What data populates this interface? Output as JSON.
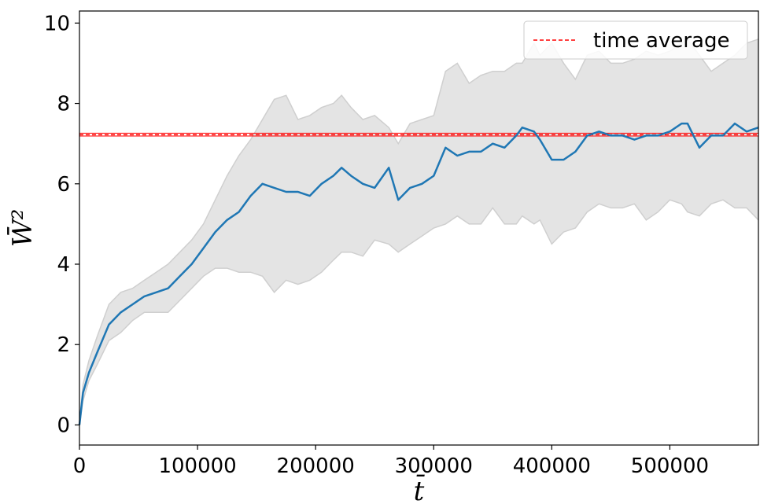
{
  "chart_data": {
    "type": "line",
    "title": "",
    "xlabel": "t̄",
    "ylabel": "W̄²",
    "xlim": [
      0,
      575000
    ],
    "ylim": [
      -0.5,
      10.3
    ],
    "x_ticks": [
      0,
      100000,
      200000,
      300000,
      400000,
      500000
    ],
    "x_tick_labels": [
      "0",
      "100000",
      "200000",
      "300000",
      "400000",
      "500000"
    ],
    "y_ticks": [
      0,
      2,
      4,
      6,
      8,
      10
    ],
    "y_tick_labels": [
      "0",
      "2",
      "4",
      "6",
      "8",
      "10"
    ],
    "grid": false,
    "legend": {
      "placement": "top-right",
      "entries": [
        "time average"
      ]
    },
    "series": [
      {
        "role": "mean",
        "color": "#1f77b4",
        "x": [
          0,
          3000,
          8000,
          15000,
          25000,
          35000,
          45000,
          55000,
          65000,
          75000,
          85000,
          95000,
          105000,
          115000,
          125000,
          135000,
          145000,
          155000,
          165000,
          175000,
          185000,
          195000,
          205000,
          215000,
          222000,
          230000,
          240000,
          250000,
          262000,
          270000,
          280000,
          290000,
          300000,
          310000,
          320000,
          330000,
          340000,
          350000,
          360000,
          370000,
          375000,
          385000,
          390000,
          400000,
          410000,
          420000,
          430000,
          440000,
          450000,
          460000,
          470000,
          480000,
          490000,
          500000,
          510000,
          515000,
          525000,
          535000,
          545000,
          555000,
          565000,
          575000
        ],
        "values": [
          0,
          0.8,
          1.3,
          1.8,
          2.5,
          2.8,
          3.0,
          3.2,
          3.3,
          3.4,
          3.7,
          4.0,
          4.4,
          4.8,
          5.1,
          5.3,
          5.7,
          6.0,
          5.9,
          5.8,
          5.8,
          5.7,
          6.0,
          6.2,
          6.4,
          6.2,
          6.0,
          5.9,
          6.4,
          5.6,
          5.9,
          6.0,
          6.2,
          6.9,
          6.7,
          6.8,
          6.8,
          7.0,
          6.9,
          7.2,
          7.4,
          7.3,
          7.1,
          6.6,
          6.6,
          6.8,
          7.2,
          7.3,
          7.2,
          7.2,
          7.1,
          7.2,
          7.2,
          7.3,
          7.5,
          7.5,
          6.9,
          7.2,
          7.2,
          7.5,
          7.3,
          7.4
        ]
      },
      {
        "role": "upper-bound",
        "color": "#d3d3d3",
        "x": [
          0,
          3000,
          8000,
          15000,
          25000,
          35000,
          45000,
          55000,
          65000,
          75000,
          85000,
          95000,
          105000,
          115000,
          125000,
          135000,
          145000,
          155000,
          165000,
          175000,
          185000,
          195000,
          205000,
          215000,
          222000,
          230000,
          240000,
          250000,
          262000,
          270000,
          280000,
          290000,
          300000,
          310000,
          320000,
          330000,
          340000,
          350000,
          360000,
          370000,
          375000,
          385000,
          390000,
          400000,
          410000,
          420000,
          430000,
          440000,
          450000,
          460000,
          470000,
          480000,
          490000,
          500000,
          510000,
          515000,
          525000,
          535000,
          545000,
          555000,
          565000,
          575000
        ],
        "values": [
          0,
          1.0,
          1.6,
          2.2,
          3.0,
          3.3,
          3.4,
          3.6,
          3.8,
          4.0,
          4.3,
          4.6,
          5.0,
          5.6,
          6.2,
          6.7,
          7.1,
          7.6,
          8.1,
          8.2,
          7.6,
          7.7,
          7.9,
          8.0,
          8.2,
          7.9,
          7.6,
          7.7,
          7.4,
          7.0,
          7.5,
          7.6,
          7.7,
          8.8,
          9.0,
          8.5,
          8.7,
          8.8,
          8.8,
          9.0,
          9.0,
          9.5,
          9.2,
          9.5,
          9.0,
          8.6,
          9.2,
          9.3,
          9.0,
          9.0,
          9.1,
          9.3,
          9.2,
          9.3,
          9.5,
          9.6,
          9.2,
          8.8,
          9.0,
          9.2,
          9.5,
          9.6
        ]
      },
      {
        "role": "lower-bound",
        "color": "#d3d3d3",
        "x": [
          0,
          3000,
          8000,
          15000,
          25000,
          35000,
          45000,
          55000,
          65000,
          75000,
          85000,
          95000,
          105000,
          115000,
          125000,
          135000,
          145000,
          155000,
          165000,
          175000,
          185000,
          195000,
          205000,
          215000,
          222000,
          230000,
          240000,
          250000,
          262000,
          270000,
          280000,
          290000,
          300000,
          310000,
          320000,
          330000,
          340000,
          350000,
          360000,
          370000,
          375000,
          385000,
          390000,
          400000,
          410000,
          420000,
          430000,
          440000,
          450000,
          460000,
          470000,
          480000,
          490000,
          500000,
          510000,
          515000,
          525000,
          535000,
          545000,
          555000,
          565000,
          575000
        ],
        "values": [
          0,
          0.6,
          1.1,
          1.5,
          2.1,
          2.3,
          2.6,
          2.8,
          2.8,
          2.8,
          3.1,
          3.4,
          3.7,
          3.9,
          3.9,
          3.8,
          3.8,
          3.7,
          3.3,
          3.6,
          3.5,
          3.6,
          3.8,
          4.1,
          4.3,
          4.3,
          4.2,
          4.6,
          4.5,
          4.3,
          4.5,
          4.7,
          4.9,
          5.0,
          5.2,
          5.0,
          5.0,
          5.4,
          5.0,
          5.0,
          5.2,
          5.0,
          5.1,
          4.5,
          4.8,
          4.9,
          5.3,
          5.5,
          5.4,
          5.4,
          5.5,
          5.1,
          5.3,
          5.6,
          5.5,
          5.3,
          5.2,
          5.5,
          5.6,
          5.4,
          5.4,
          5.1
        ]
      },
      {
        "role": "time-average",
        "name": "time average",
        "color": "#ff0000",
        "x": [
          0,
          575000
        ],
        "values": [
          7.22,
          7.22
        ],
        "band": [
          7.19,
          7.26
        ]
      }
    ]
  }
}
